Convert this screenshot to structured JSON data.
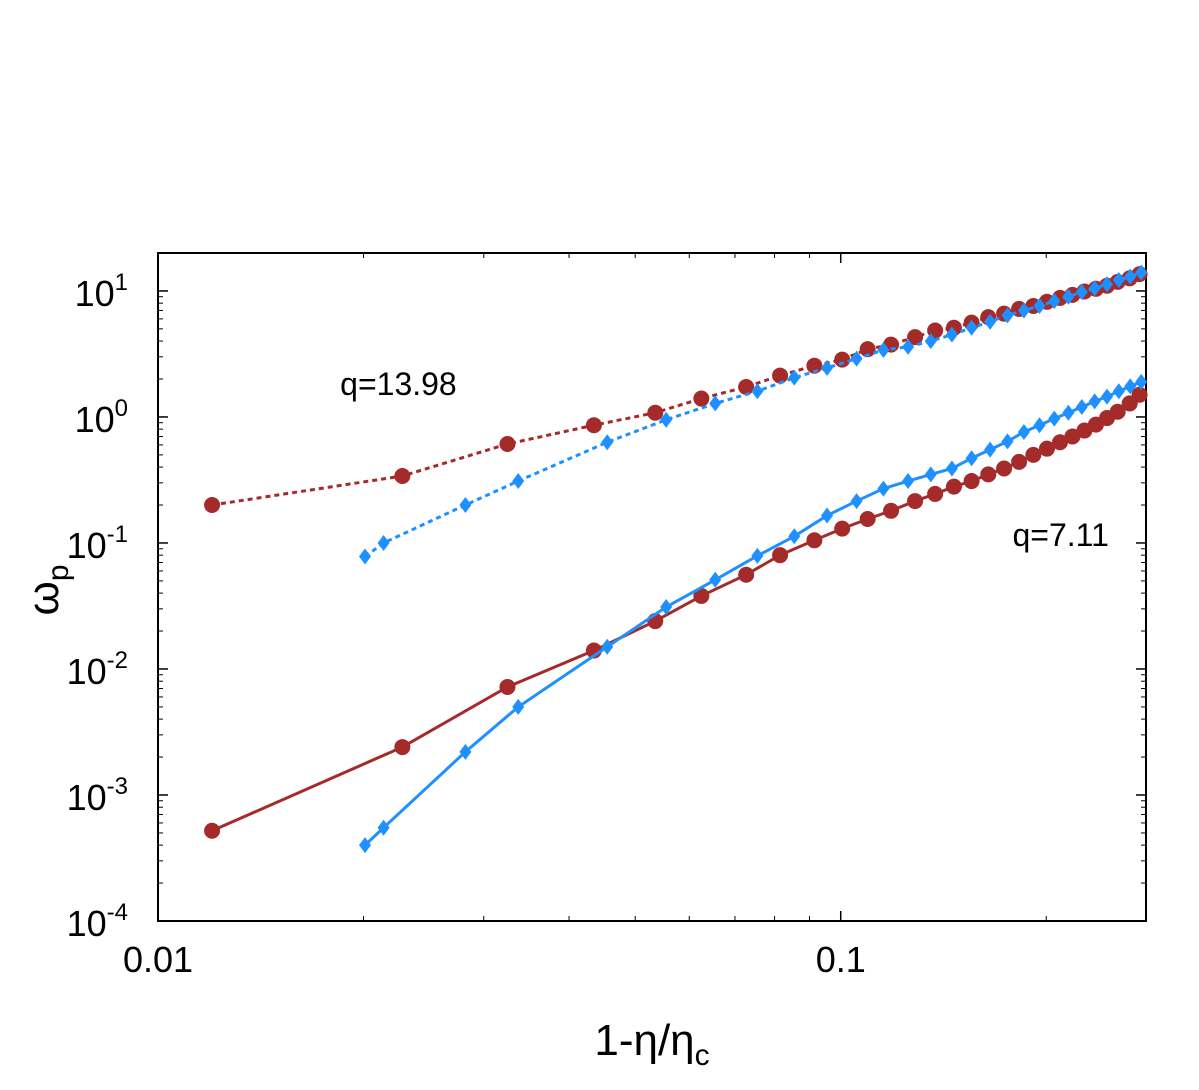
{
  "chart_data": {
    "type": "scatter",
    "x_scale": "log",
    "y_scale": "log",
    "xlim": [
      0.01,
      0.28
    ],
    "ylim": [
      0.0001,
      20
    ],
    "xlabel": {
      "base": "1-η/η",
      "sub": "c"
    },
    "ylabel": {
      "base": "ω",
      "sub": "p"
    },
    "x_ticks": [
      {
        "value": 0.01,
        "label": "0.01"
      },
      {
        "value": 0.1,
        "label": "0.1"
      }
    ],
    "y_ticks": [
      {
        "value": 10,
        "base": "10",
        "exp": "1"
      },
      {
        "value": 1,
        "base": "10",
        "exp": "0"
      },
      {
        "value": 0.1,
        "base": "10",
        "exp": "-1"
      },
      {
        "value": 0.01,
        "base": "10",
        "exp": "-2"
      },
      {
        "value": 0.001,
        "base": "10",
        "exp": "-3"
      },
      {
        "value": 0.0001,
        "base": "10",
        "exp": "-4"
      }
    ],
    "annotations": [
      {
        "text": "q=13.98",
        "x": 0.0225,
        "y": 1.5
      },
      {
        "text": "q=7.11",
        "x": 0.21,
        "y": 0.095
      }
    ],
    "series": [
      {
        "marker": "circle",
        "color": "#a52a2a",
        "line": "dotted",
        "x": [
          0.012,
          0.0228,
          0.0325,
          0.0435,
          0.0535,
          0.0625,
          0.0727,
          0.0815,
          0.0915,
          0.1005,
          0.1095,
          0.1185,
          0.1285,
          0.1375,
          0.1465,
          0.1555,
          0.1645,
          0.1735,
          0.1825,
          0.1915,
          0.2005,
          0.2095,
          0.2185,
          0.2275,
          0.2365,
          0.2455,
          0.2545,
          0.265,
          0.274
        ],
        "y": [
          0.2,
          0.34,
          0.61,
          0.86,
          1.08,
          1.4,
          1.73,
          2.13,
          2.55,
          2.85,
          3.45,
          3.75,
          4.3,
          4.85,
          5.1,
          5.6,
          6.2,
          6.6,
          7.2,
          7.6,
          8.2,
          8.8,
          9.3,
          9.9,
          10.4,
          11.0,
          11.8,
          12.6,
          13.6
        ]
      },
      {
        "marker": "diamond",
        "color": "#1e90ff",
        "line": "dotted",
        "x": [
          0.0201,
          0.0214,
          0.0282,
          0.0337,
          0.0455,
          0.0555,
          0.0655,
          0.0755,
          0.0855,
          0.0955,
          0.1055,
          0.1155,
          0.1255,
          0.1355,
          0.1455,
          0.1555,
          0.1655,
          0.1755,
          0.1855,
          0.1955,
          0.2055,
          0.2155,
          0.2255,
          0.2355,
          0.2455,
          0.2555,
          0.2655,
          0.2755
        ],
        "y": [
          0.078,
          0.1,
          0.2,
          0.31,
          0.63,
          0.95,
          1.28,
          1.6,
          2.05,
          2.45,
          2.9,
          3.4,
          3.6,
          4.0,
          4.5,
          5.1,
          5.7,
          6.4,
          7.0,
          7.6,
          8.3,
          9.0,
          9.8,
          10.5,
          11.3,
          12.2,
          13.0,
          14.0
        ]
      },
      {
        "marker": "circle",
        "color": "#a52a2a",
        "line": "solid",
        "x": [
          0.012,
          0.0228,
          0.0325,
          0.0435,
          0.0535,
          0.0625,
          0.0727,
          0.0815,
          0.0915,
          0.1005,
          0.1095,
          0.1185,
          0.1285,
          0.1375,
          0.1465,
          0.1555,
          0.1645,
          0.1735,
          0.1825,
          0.1915,
          0.2005,
          0.2095,
          0.2185,
          0.2275,
          0.2365,
          0.2455,
          0.2545,
          0.265,
          0.274
        ],
        "y": [
          0.00052,
          0.0024,
          0.0072,
          0.014,
          0.024,
          0.038,
          0.056,
          0.08,
          0.105,
          0.13,
          0.155,
          0.18,
          0.215,
          0.245,
          0.28,
          0.31,
          0.35,
          0.39,
          0.44,
          0.5,
          0.56,
          0.63,
          0.7,
          0.78,
          0.87,
          0.98,
          1.1,
          1.28,
          1.5
        ]
      },
      {
        "marker": "diamond",
        "color": "#1e90ff",
        "line": "solid",
        "x": [
          0.0201,
          0.0214,
          0.0282,
          0.0337,
          0.0455,
          0.0555,
          0.0655,
          0.0755,
          0.0855,
          0.0955,
          0.1055,
          0.1155,
          0.1255,
          0.1355,
          0.1455,
          0.1555,
          0.1655,
          0.1755,
          0.1855,
          0.1955,
          0.2055,
          0.2155,
          0.2255,
          0.2355,
          0.2455,
          0.2555,
          0.2655,
          0.2755
        ],
        "y": [
          0.0004,
          0.00055,
          0.0022,
          0.005,
          0.015,
          0.031,
          0.051,
          0.079,
          0.113,
          0.165,
          0.215,
          0.27,
          0.31,
          0.35,
          0.39,
          0.47,
          0.55,
          0.64,
          0.76,
          0.86,
          0.97,
          1.08,
          1.2,
          1.33,
          1.45,
          1.6,
          1.75,
          1.9
        ]
      }
    ]
  }
}
